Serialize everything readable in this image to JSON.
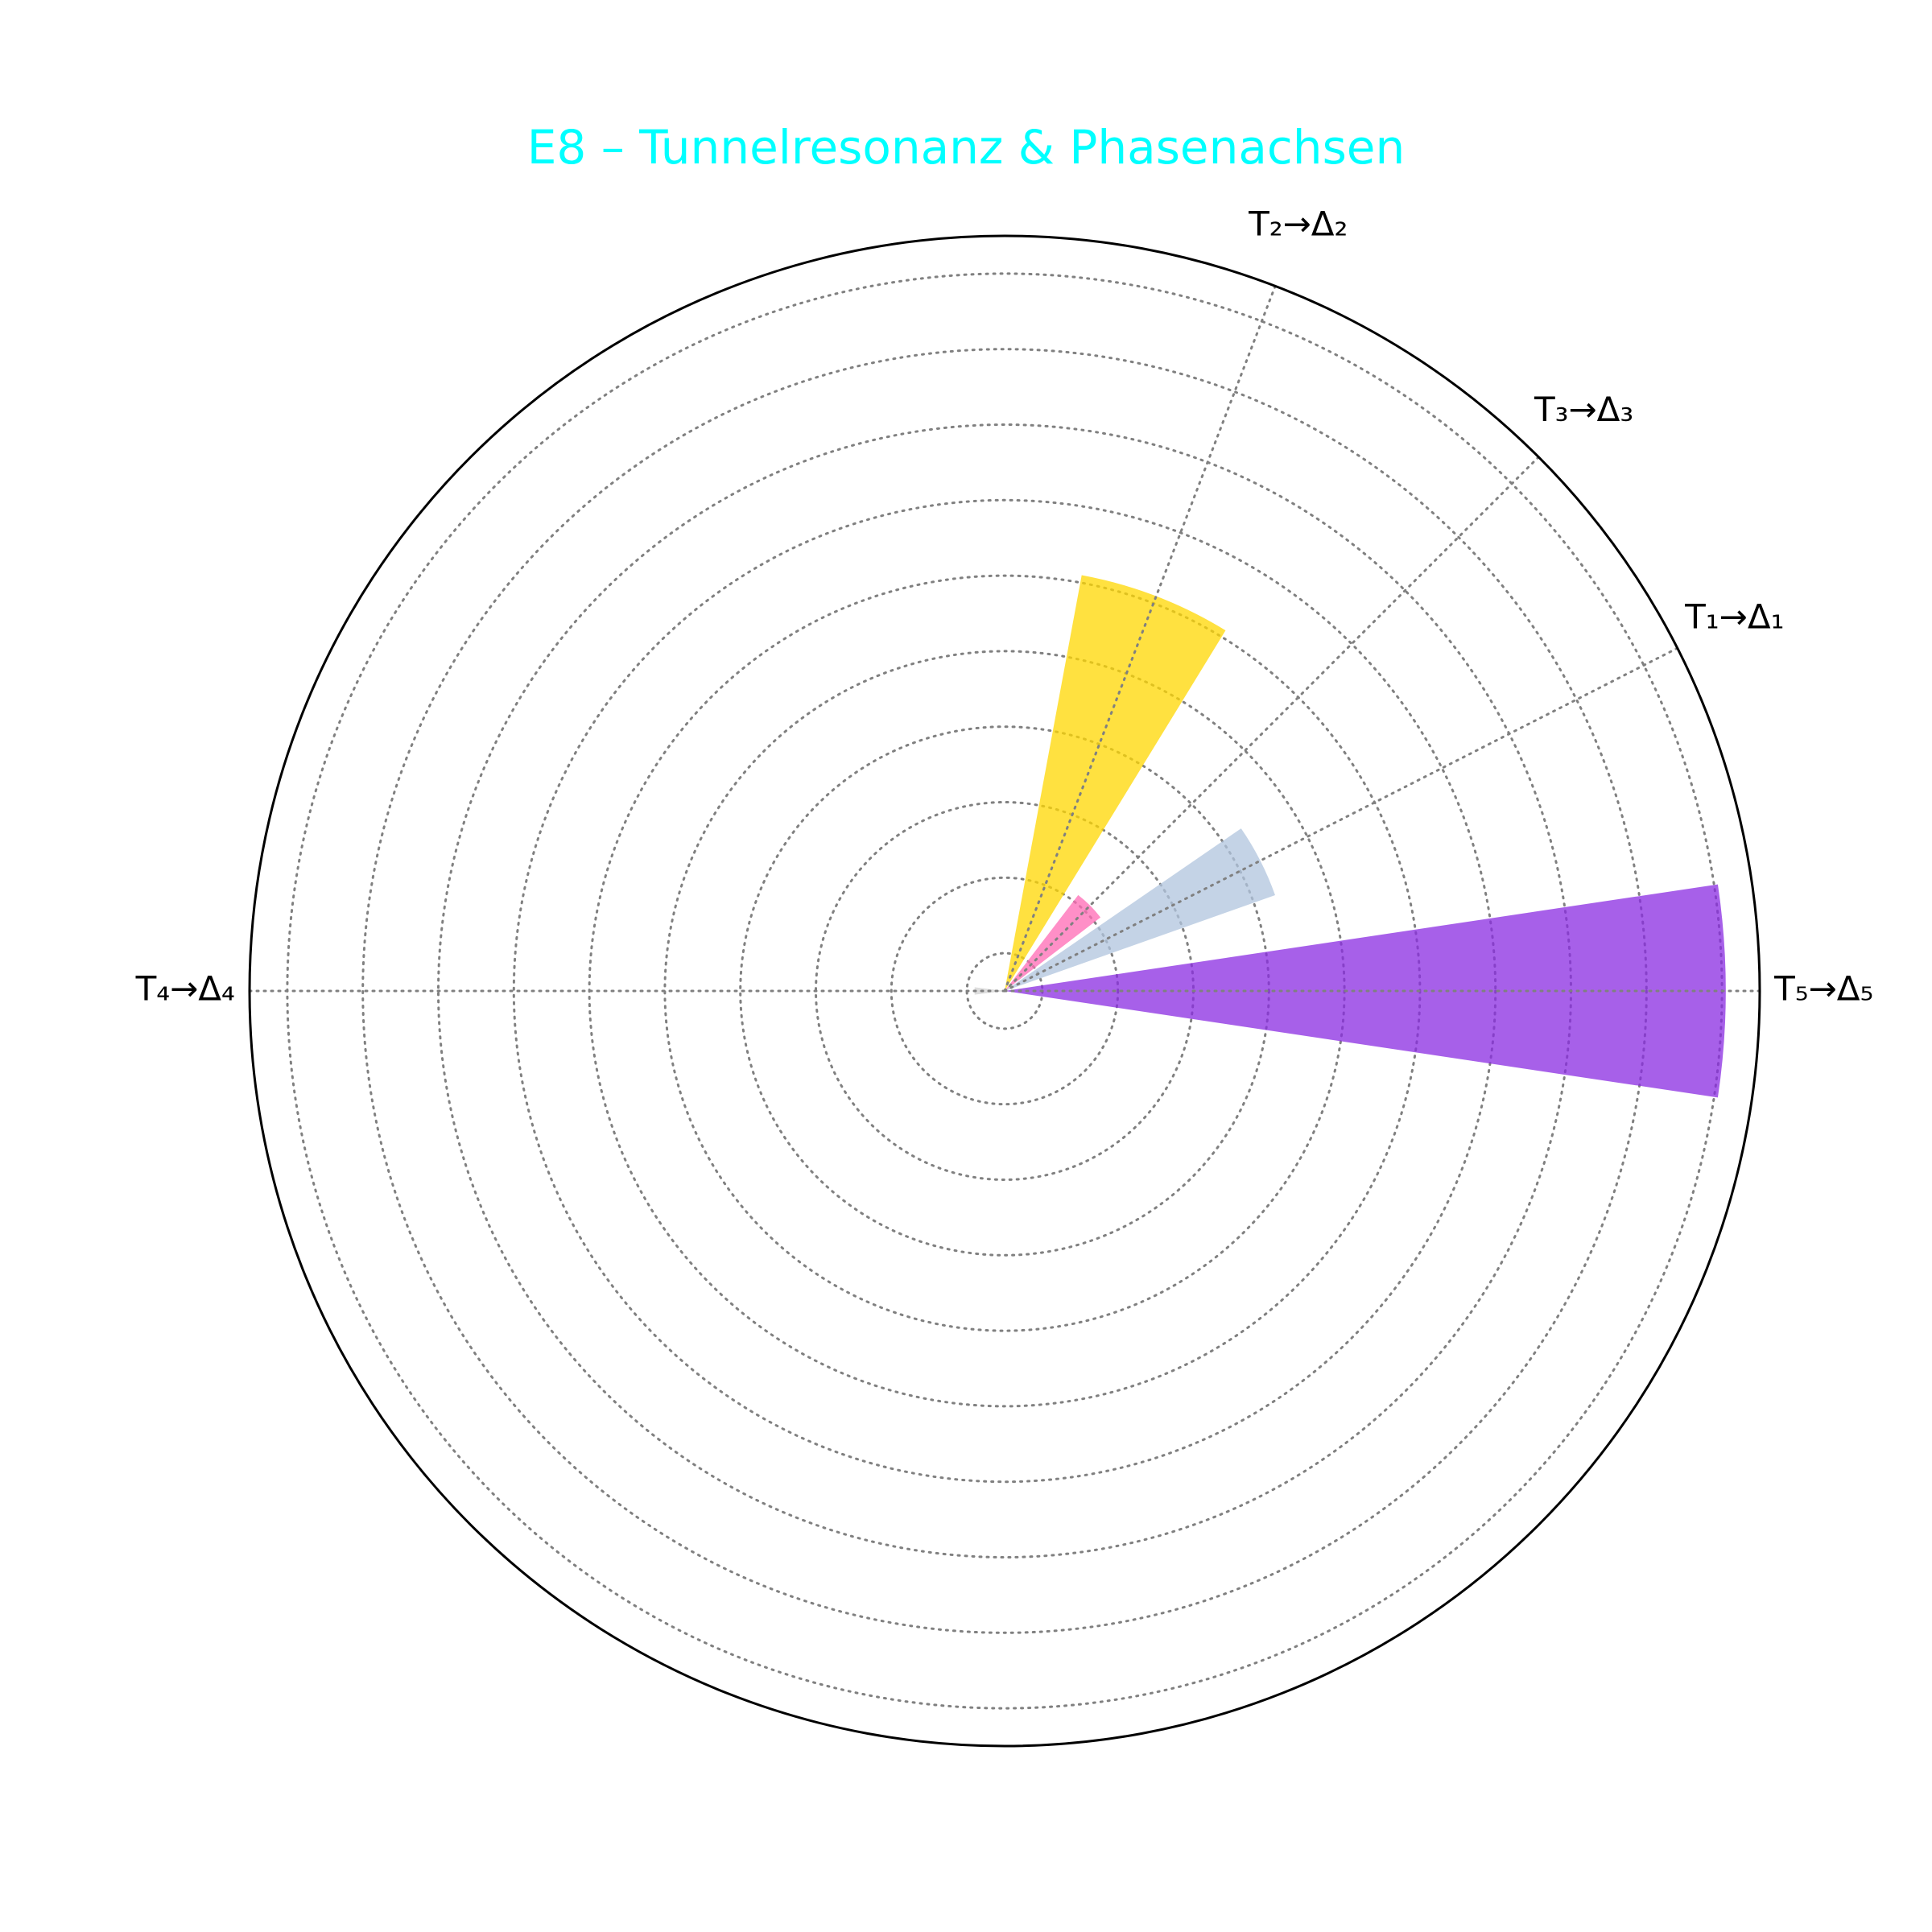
{
  "chart_data": {
    "type": "polar-bar",
    "title": "E8 – Tunnelresonanz & Phasenachsen",
    "title_color": "#00ffff",
    "angle_unit": "degrees",
    "theta_ticks": [
      {
        "label": "T₁→Δ₁",
        "angle": 27
      },
      {
        "label": "T₂→Δ₂",
        "angle": 69
      },
      {
        "label": "T₃→Δ₃",
        "angle": 45
      },
      {
        "label": "T₄→Δ₄",
        "angle": 180
      },
      {
        "label": "T₅→Δ₅",
        "angle": 0
      }
    ],
    "radial_grid": [
      0.05,
      0.15,
      0.25,
      0.35,
      0.45,
      0.55,
      0.65,
      0.75,
      0.85,
      0.95
    ],
    "rlim": [
      0,
      1.0
    ],
    "grid": true,
    "bars": [
      {
        "label": "T₁→Δ₁",
        "angle": 27,
        "width": 15,
        "value": 0.38,
        "color": "#b0c4de",
        "opacity": 0.75
      },
      {
        "label": "T₂→Δ₂",
        "angle": 69,
        "width": 21,
        "value": 0.56,
        "color": "#ffd700",
        "opacity": 0.75
      },
      {
        "label": "T₃→Δ₃",
        "angle": 45,
        "width": 15,
        "value": 0.16,
        "color": "#ff69b4",
        "opacity": 0.75
      },
      {
        "label": "T₄→Δ₄",
        "angle": 180,
        "width": 14,
        "value": 0.04,
        "color": "#d3d3d3",
        "opacity": 0.75
      },
      {
        "label": "T₅→Δ₅",
        "angle": 0,
        "width": 17,
        "value": 0.955,
        "color": "#8a2be2",
        "opacity": 0.75
      }
    ]
  }
}
